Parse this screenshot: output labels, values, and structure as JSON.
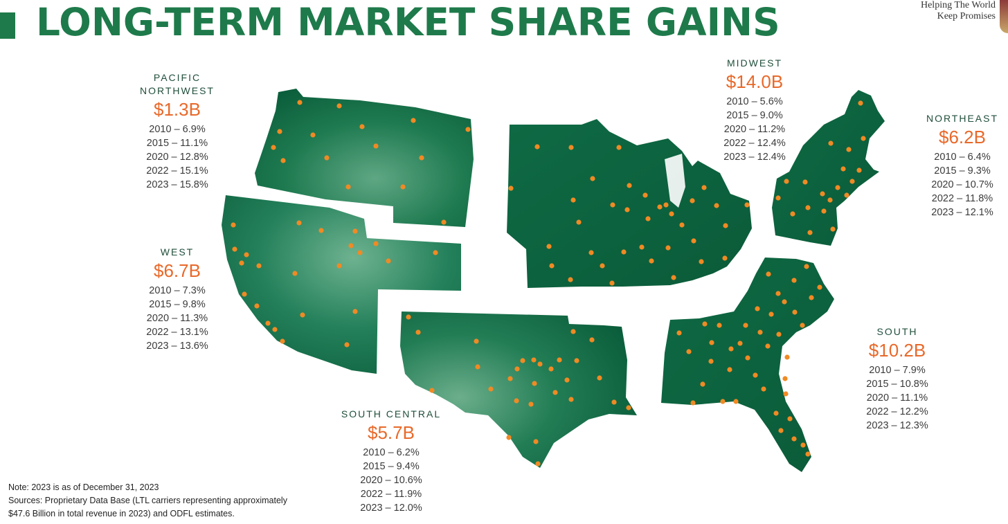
{
  "title": "LONG-TERM MARKET SHARE GAINS",
  "tagline": {
    "line1": "Helping The World",
    "line2": "Keep Promises"
  },
  "colors": {
    "brand_green": "#1e7a4a",
    "map_green": "#0f6b45",
    "value_orange": "#e8692a",
    "dot_orange": "#f08a24"
  },
  "regions": [
    {
      "name_lines": [
        "PACIFIC",
        "NORTHWEST"
      ],
      "value": "$1.3B",
      "rows": [
        "2010 – 6.9%",
        "2015 – 11.1%",
        "2020 – 12.8%",
        "2022 – 15.1%",
        "2023 – 15.8%"
      ]
    },
    {
      "name_lines": [
        "WEST"
      ],
      "value": "$6.7B",
      "rows": [
        "2010 – 7.3%",
        "2015 – 9.8%",
        "2020 – 11.3%",
        "2022 – 13.1%",
        "2023 – 13.6%"
      ]
    },
    {
      "name_lines": [
        "SOUTH CENTRAL"
      ],
      "value": "$5.7B",
      "rows": [
        "2010 – 6.2%",
        "2015 – 9.4%",
        "2020 – 10.6%",
        "2022 – 11.9%",
        "2023 – 12.0%"
      ]
    },
    {
      "name_lines": [
        "MIDWEST"
      ],
      "value": "$14.0B",
      "rows": [
        "2010 – 5.6%",
        "2015 – 9.0%",
        "2020 – 11.2%",
        "2022 – 12.4%",
        "2023 – 12.4%"
      ]
    },
    {
      "name_lines": [
        "NORTHEAST"
      ],
      "value": "$6.2B",
      "rows": [
        "2010 – 6.4%",
        "2015 – 9.3%",
        "2020 – 10.7%",
        "2022 – 11.8%",
        "2023 – 12.1%"
      ]
    },
    {
      "name_lines": [
        "SOUTH"
      ],
      "value": "$10.2B",
      "rows": [
        "2010 – 7.9%",
        "2015 – 10.8%",
        "2020 – 11.1%",
        "2022 – 12.2%",
        "2023 – 12.3%"
      ]
    }
  ],
  "note": {
    "line1": "Note:  2023 is as of December 31, 2023",
    "line2": "Sources: Proprietary Data Base (LTL carriers representing approximately",
    "line3": "$47.6 Billion in total revenue in 2023) and ODFL estimates."
  }
}
